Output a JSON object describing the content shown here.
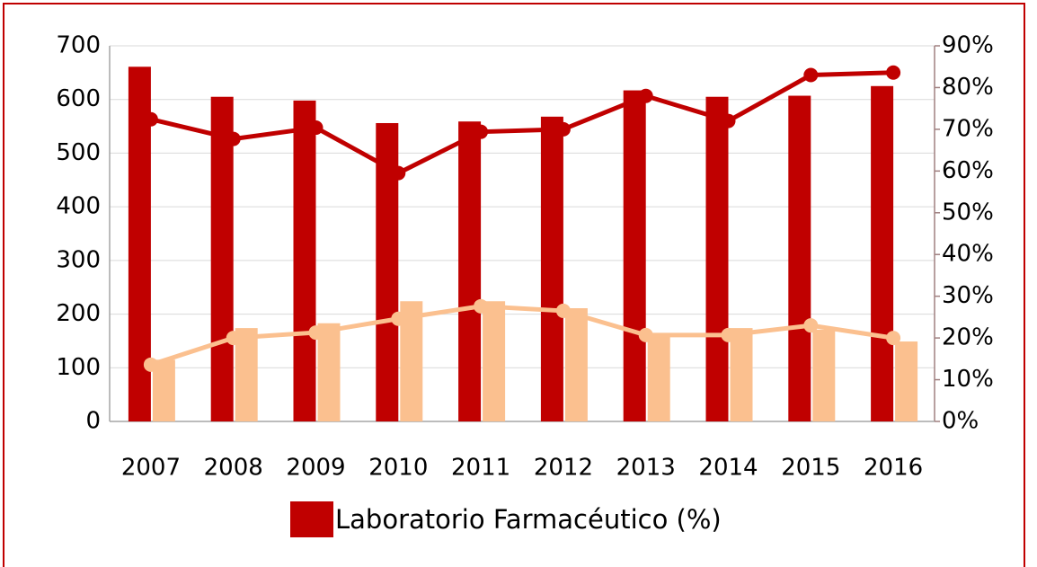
{
  "chart_data": {
    "type": "bar",
    "categories": [
      "2007",
      "2008",
      "2009",
      "2010",
      "2011",
      "2012",
      "2013",
      "2014",
      "2015",
      "2016"
    ],
    "series": [
      {
        "name": "Laboratorio Farmacéutico (%)",
        "type": "bar",
        "color": "#c00000",
        "values": [
          661,
          605,
          598,
          556,
          559,
          568,
          617,
          605,
          607,
          625
        ]
      },
      {
        "type": "bar",
        "color": "#fbc08f",
        "values": [
          115,
          174,
          183,
          224,
          224,
          211,
          164,
          174,
          171,
          149
        ]
      },
      {
        "type": "line",
        "axis": "y2",
        "color": "#c00000",
        "values": [
          72.4,
          67.7,
          70.4,
          59.5,
          69.4,
          70,
          78,
          72,
          83,
          83.6
        ]
      },
      {
        "type": "line",
        "axis": "y2",
        "color": "#fbc08f",
        "values": [
          13.6,
          20,
          21.3,
          24.6,
          27.6,
          26.5,
          20.7,
          20.7,
          23,
          20
        ]
      }
    ],
    "ylim": [
      0,
      700
    ],
    "yticks": [
      0,
      100,
      200,
      300,
      400,
      500,
      600,
      700
    ],
    "y2lim": [
      0,
      90
    ],
    "y2ticks": [
      {
        "value": 0,
        "label": "0%"
      },
      {
        "value": 10,
        "label": "10%"
      },
      {
        "value": 20,
        "label": "20%"
      },
      {
        "value": 30,
        "label": "30%"
      },
      {
        "value": 40,
        "label": "40%"
      },
      {
        "value": 50,
        "label": "50%"
      },
      {
        "value": 60,
        "label": "60%"
      },
      {
        "value": 70,
        "label": "70%"
      },
      {
        "value": 80,
        "label": "80%"
      },
      {
        "value": 90,
        "label": "90%"
      }
    ],
    "grid": true,
    "legend": "bottom"
  }
}
